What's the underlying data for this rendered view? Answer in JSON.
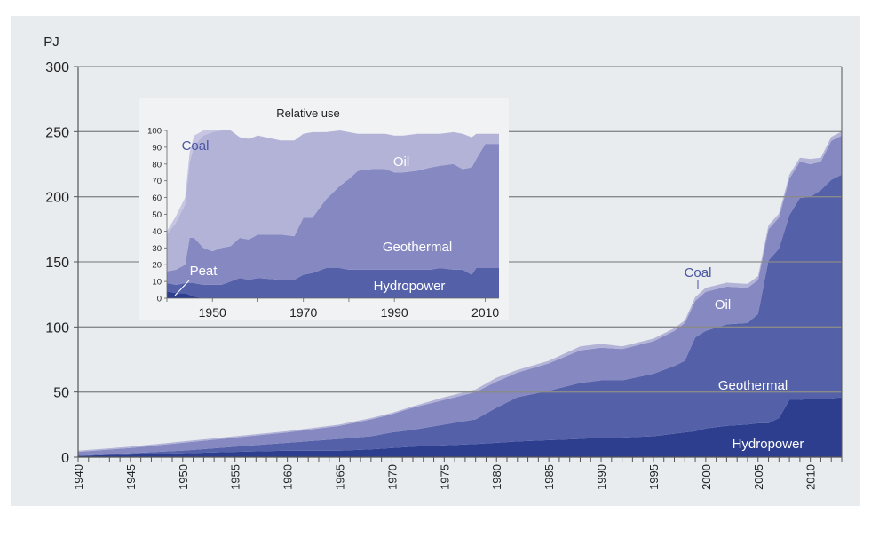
{
  "chart_data": [
    {
      "type": "area",
      "stacked": true,
      "ylabel": "PJ",
      "ylim": [
        0,
        300
      ],
      "yticks": [
        0,
        50,
        100,
        150,
        200,
        250,
        300
      ],
      "xlim": [
        1940,
        2013
      ],
      "xtick_labels": [
        1940,
        1945,
        1950,
        1955,
        1960,
        1965,
        1970,
        1975,
        1980,
        1985,
        1990,
        1995,
        2000,
        2005,
        2010
      ],
      "x": [
        1940,
        1945,
        1950,
        1955,
        1960,
        1965,
        1968,
        1970,
        1972,
        1975,
        1978,
        1980,
        1982,
        1985,
        1988,
        1990,
        1992,
        1995,
        1997,
        1998,
        1999,
        2000,
        2002,
        2004,
        2005,
        2006,
        2007,
        2008,
        2009,
        2010,
        2011,
        2012,
        2013
      ],
      "series": [
        {
          "name": "Hydropower",
          "values": [
            1,
            2,
            3,
            4,
            5,
            5,
            6,
            7,
            8,
            9,
            10,
            11,
            12,
            13,
            14,
            15,
            15,
            16,
            18,
            19,
            20,
            22,
            24,
            25,
            26,
            26,
            30,
            44,
            44,
            45,
            45,
            45,
            46
          ],
          "color": "#2d3e8f"
        },
        {
          "name": "Geothermal",
          "values": [
            0,
            1,
            2,
            4,
            6,
            9,
            10,
            12,
            13,
            16,
            19,
            27,
            34,
            38,
            43,
            44,
            44,
            48,
            52,
            55,
            72,
            75,
            78,
            78,
            84,
            125,
            130,
            142,
            155,
            155,
            160,
            168,
            171
          ],
          "color": "#5461a8"
        },
        {
          "name": "Oil",
          "values": [
            3,
            4,
            6,
            7,
            8,
            10,
            13,
            14,
            17,
            19,
            21,
            20,
            19,
            21,
            25,
            25,
            24,
            25,
            27,
            29,
            28,
            30,
            29,
            27,
            26,
            24,
            24,
            28,
            28,
            25,
            22,
            30,
            30
          ],
          "color": "#8688c2"
        },
        {
          "name": "Coal",
          "values": [
            1,
            1,
            1,
            1,
            1,
            1,
            1,
            1,
            1,
            2,
            2,
            3,
            2,
            2,
            3,
            3,
            2,
            2,
            2,
            2,
            3,
            3,
            3,
            3,
            3,
            3,
            3,
            3,
            3,
            4,
            3,
            3,
            3
          ],
          "color": "#b3b3d8"
        }
      ],
      "annotations": {
        "coal": "Coal",
        "oil": "Oil",
        "geothermal": "Geothermal",
        "hydropower": "Hydropower"
      }
    },
    {
      "type": "area",
      "stacked": true,
      "title": "Relative use",
      "ylim": [
        0,
        100
      ],
      "yticks": [
        0,
        10,
        20,
        30,
        40,
        50,
        60,
        70,
        80,
        90,
        100
      ],
      "xlim": [
        1940,
        2013
      ],
      "xtick_labels": [
        1950,
        1970,
        1990,
        2010
      ],
      "x": [
        1940,
        1942,
        1944,
        1945,
        1946,
        1948,
        1950,
        1952,
        1954,
        1956,
        1958,
        1960,
        1965,
        1968,
        1970,
        1972,
        1975,
        1978,
        1980,
        1982,
        1985,
        1988,
        1990,
        1992,
        1995,
        1998,
        2000,
        2003,
        2005,
        2007,
        2008,
        2010,
        2013
      ],
      "series": [
        {
          "name": "Peat",
          "values": [
            4,
            3,
            3,
            2,
            1,
            0,
            0,
            0,
            0,
            0,
            0,
            0,
            0,
            0,
            0,
            0,
            0,
            0,
            0,
            0,
            0,
            0,
            0,
            0,
            0,
            0,
            0,
            0,
            0,
            0,
            0,
            0,
            0
          ],
          "color": "#2d3e8f"
        },
        {
          "name": "Hydropower",
          "values": [
            5,
            5,
            6,
            7,
            8,
            8,
            8,
            8,
            10,
            12,
            11,
            12,
            11,
            11,
            14,
            15,
            18,
            18,
            17,
            17,
            17,
            17,
            17,
            17,
            17,
            17,
            18,
            17,
            17,
            14,
            18,
            18,
            18
          ],
          "color": "#5461a8"
        },
        {
          "name": "Geothermal",
          "values": [
            7,
            9,
            11,
            27,
            27,
            22,
            20,
            22,
            21,
            24,
            24,
            26,
            27,
            26,
            34,
            33,
            41,
            49,
            54,
            59,
            60,
            60,
            58,
            58,
            59,
            61,
            61,
            63,
            60,
            64,
            65,
            74,
            74
          ],
          "color": "#8688c2"
        },
        {
          "name": "Oil",
          "values": [
            22,
            28,
            36,
            45,
            55,
            67,
            71,
            70,
            69,
            60,
            60,
            59,
            56,
            57,
            50,
            51,
            40,
            33,
            28,
            22,
            21,
            21,
            22,
            22,
            22,
            20,
            19,
            19,
            21,
            18,
            15,
            6,
            6
          ],
          "color": "#b3b3d8"
        },
        {
          "name": "Coal",
          "values": [
            2,
            4,
            4,
            6,
            6,
            3,
            1,
            0,
            0,
            0,
            0,
            0,
            0,
            0,
            0,
            0,
            0,
            0,
            0,
            0,
            0,
            0,
            0,
            0,
            0,
            0,
            0,
            0,
            0,
            0,
            0,
            0,
            0
          ],
          "color": "#c6c6e2"
        }
      ],
      "annotations": {
        "coal": "Coal",
        "oil": "Oil",
        "geothermal": "Geothermal",
        "peat": "Peat",
        "hydropower": "Hydropower"
      }
    }
  ]
}
